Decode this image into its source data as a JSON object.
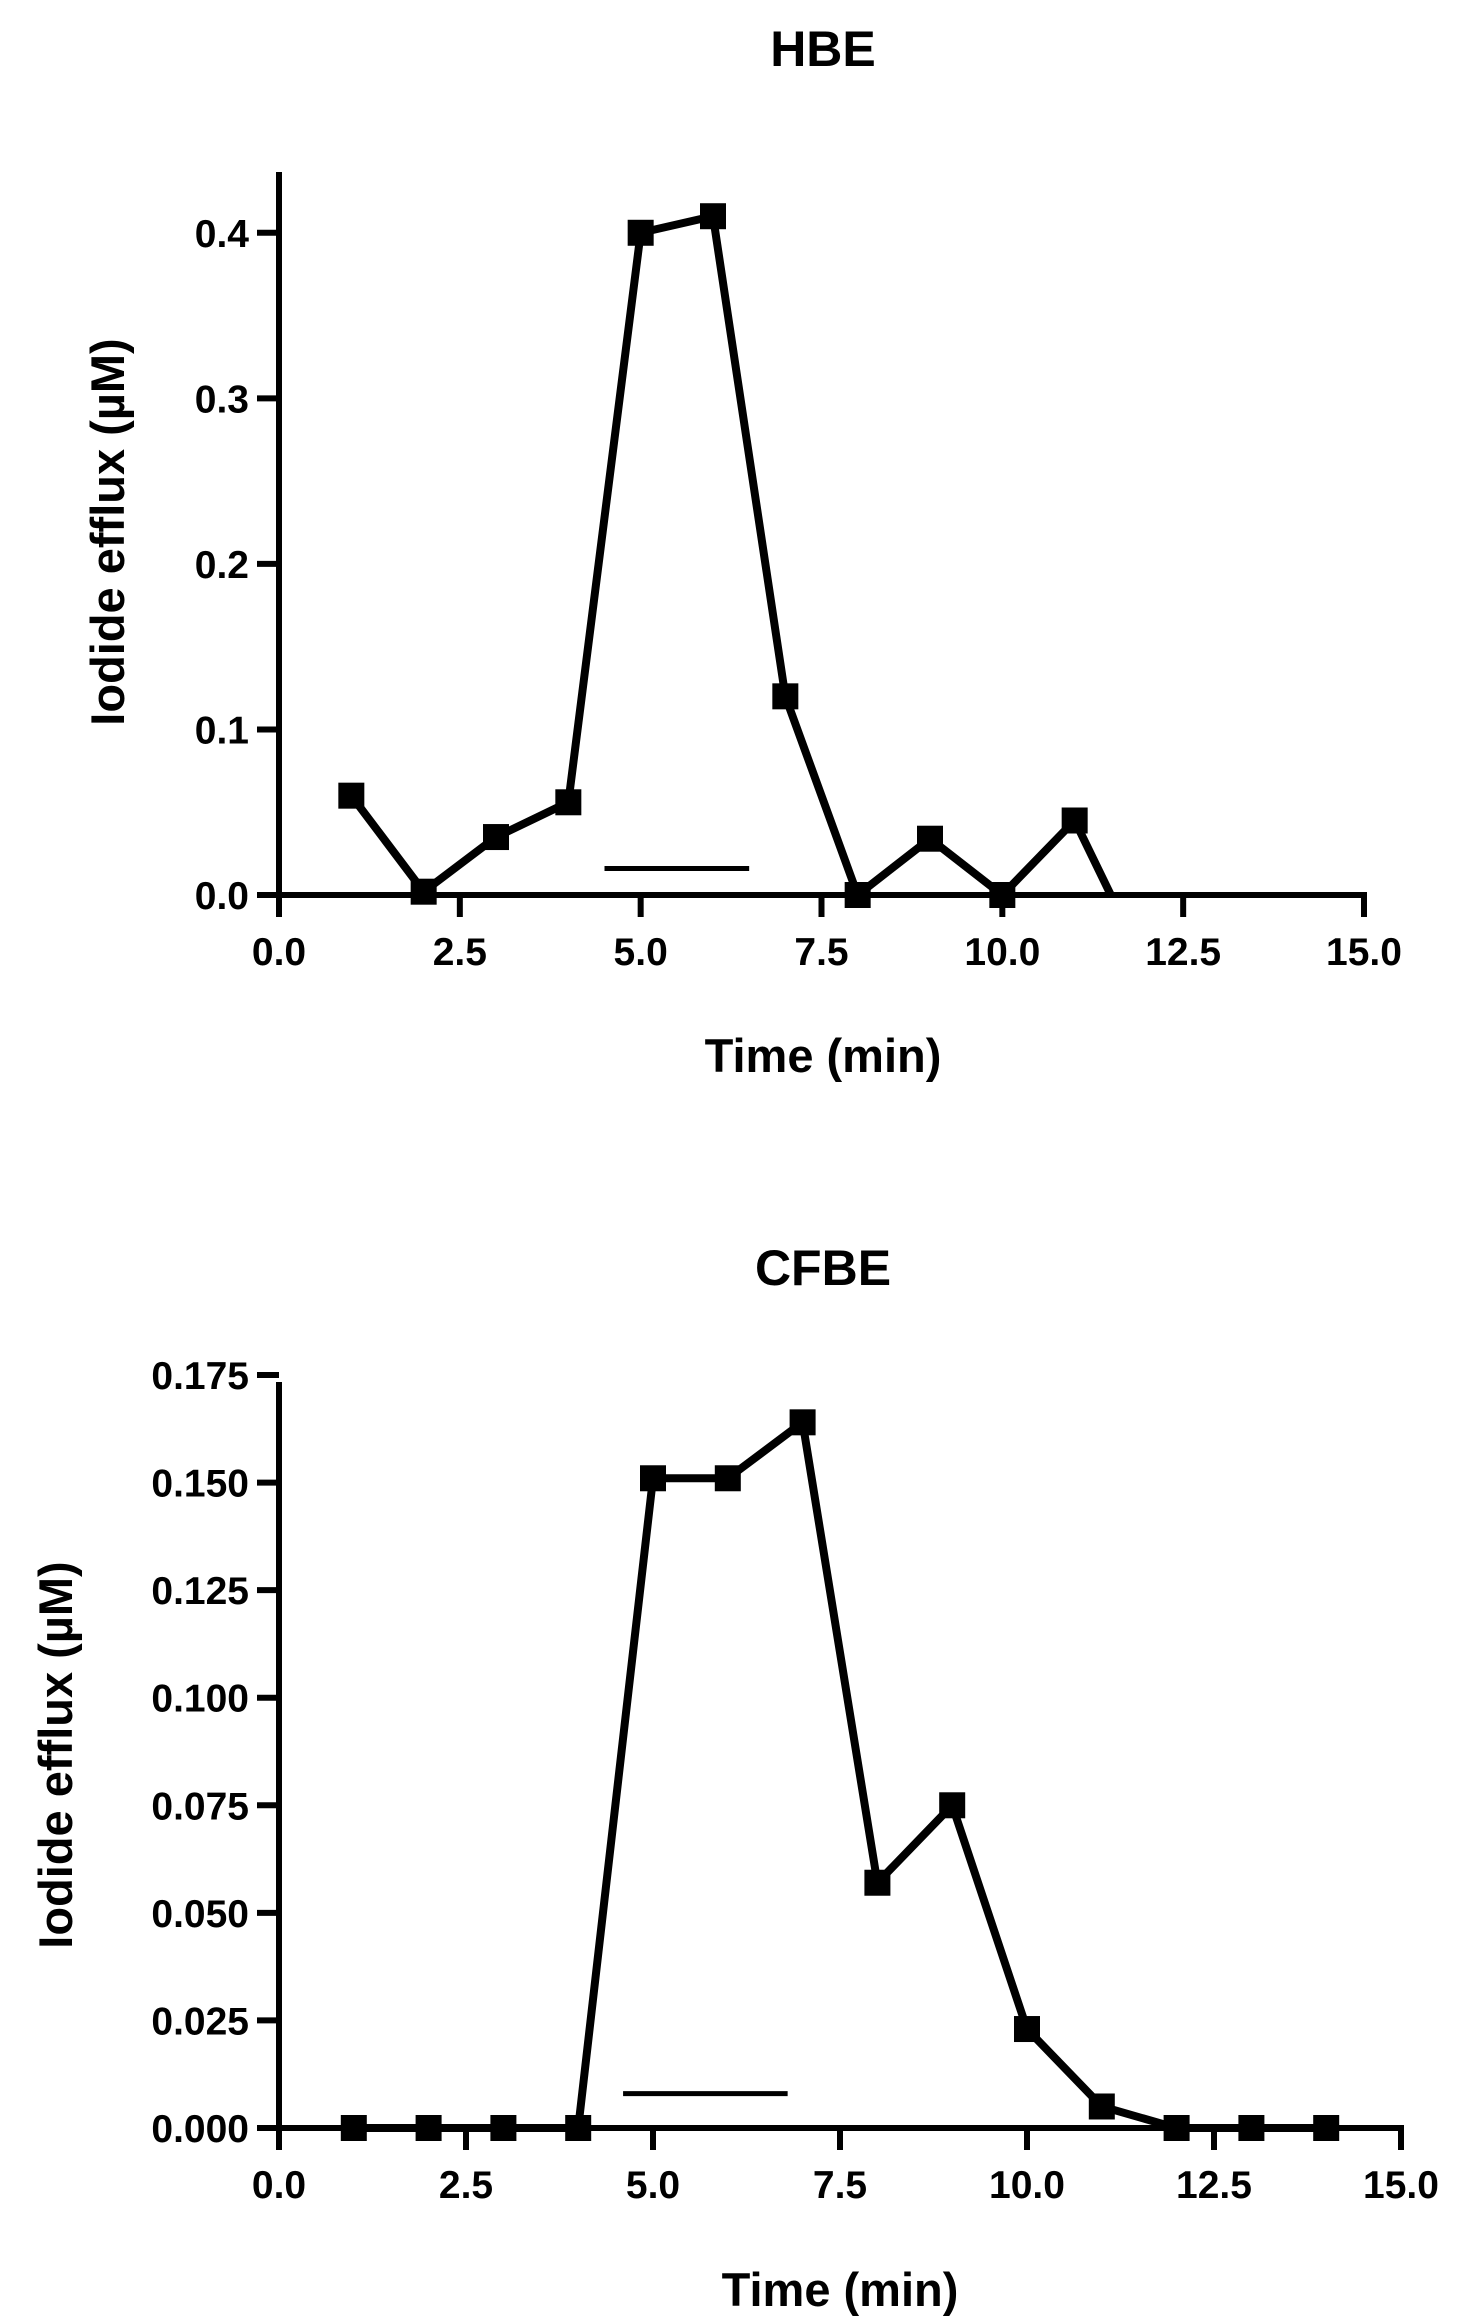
{
  "colors": {
    "line": "#000000",
    "background": "#ffffff"
  },
  "chart_data": [
    {
      "type": "line",
      "title": "HBE",
      "xlabel": "Time (min)",
      "ylabel": "Iodide efflux (µM)",
      "xlim": [
        0,
        15
      ],
      "ylim": [
        0,
        0.45
      ],
      "xticks": [
        0,
        2.5,
        5,
        7.5,
        10,
        12.5,
        15
      ],
      "xtick_labels": [
        "0.0",
        "2.5",
        "5.0",
        "7.5",
        "10.0",
        "12.5",
        "15.0"
      ],
      "yticks": [
        0,
        0.1,
        0.2,
        0.3,
        0.4
      ],
      "ytick_labels": [
        "0.0",
        "0.1",
        "0.2",
        "0.3",
        "0.4"
      ],
      "grid": false,
      "series": [
        {
          "name": "HBE",
          "x": [
            1,
            2,
            3,
            4,
            5,
            6,
            7,
            8,
            9,
            10,
            11
          ],
          "values": [
            0.06,
            0.002,
            0.035,
            0.056,
            0.4,
            0.41,
            0.12,
            0.0,
            0.034,
            0.0,
            0.045
          ]
        }
      ],
      "line_to_x_end": 11.5,
      "line_to_y_end": 0.0,
      "marker": "square",
      "annotation_bar": {
        "x_start": 4.5,
        "x_end": 6.5,
        "y": 0.016
      }
    },
    {
      "type": "line",
      "title": "CFBE",
      "xlabel": "Time (min)",
      "ylabel": "Iodide efflux (µM)",
      "xlim": [
        0,
        15
      ],
      "ylim": [
        0,
        0.175
      ],
      "xticks": [
        0,
        2.5,
        5,
        7.5,
        10,
        12.5,
        15
      ],
      "xtick_labels": [
        "0.0",
        "2.5",
        "5.0",
        "7.5",
        "10.0",
        "12.5",
        "15.0"
      ],
      "yticks": [
        0,
        0.025,
        0.05,
        0.075,
        0.1,
        0.125,
        0.15,
        0.175
      ],
      "ytick_labels": [
        "0.000",
        "0.025",
        "0.050",
        "0.075",
        "0.100",
        "0.125",
        "0.150",
        "0.175"
      ],
      "grid": false,
      "series": [
        {
          "name": "CFBE",
          "x": [
            1,
            2,
            3,
            4,
            5,
            6,
            7,
            8,
            9,
            10,
            11,
            12,
            13,
            14
          ],
          "values": [
            0,
            0,
            0,
            0,
            0.151,
            0.151,
            0.164,
            0.057,
            0.075,
            0.023,
            0.005,
            0,
            0,
            0
          ]
        }
      ],
      "marker": "square",
      "annotation_bar": {
        "x_start": 4.6,
        "x_end": 6.8,
        "y": 0.008
      }
    }
  ]
}
